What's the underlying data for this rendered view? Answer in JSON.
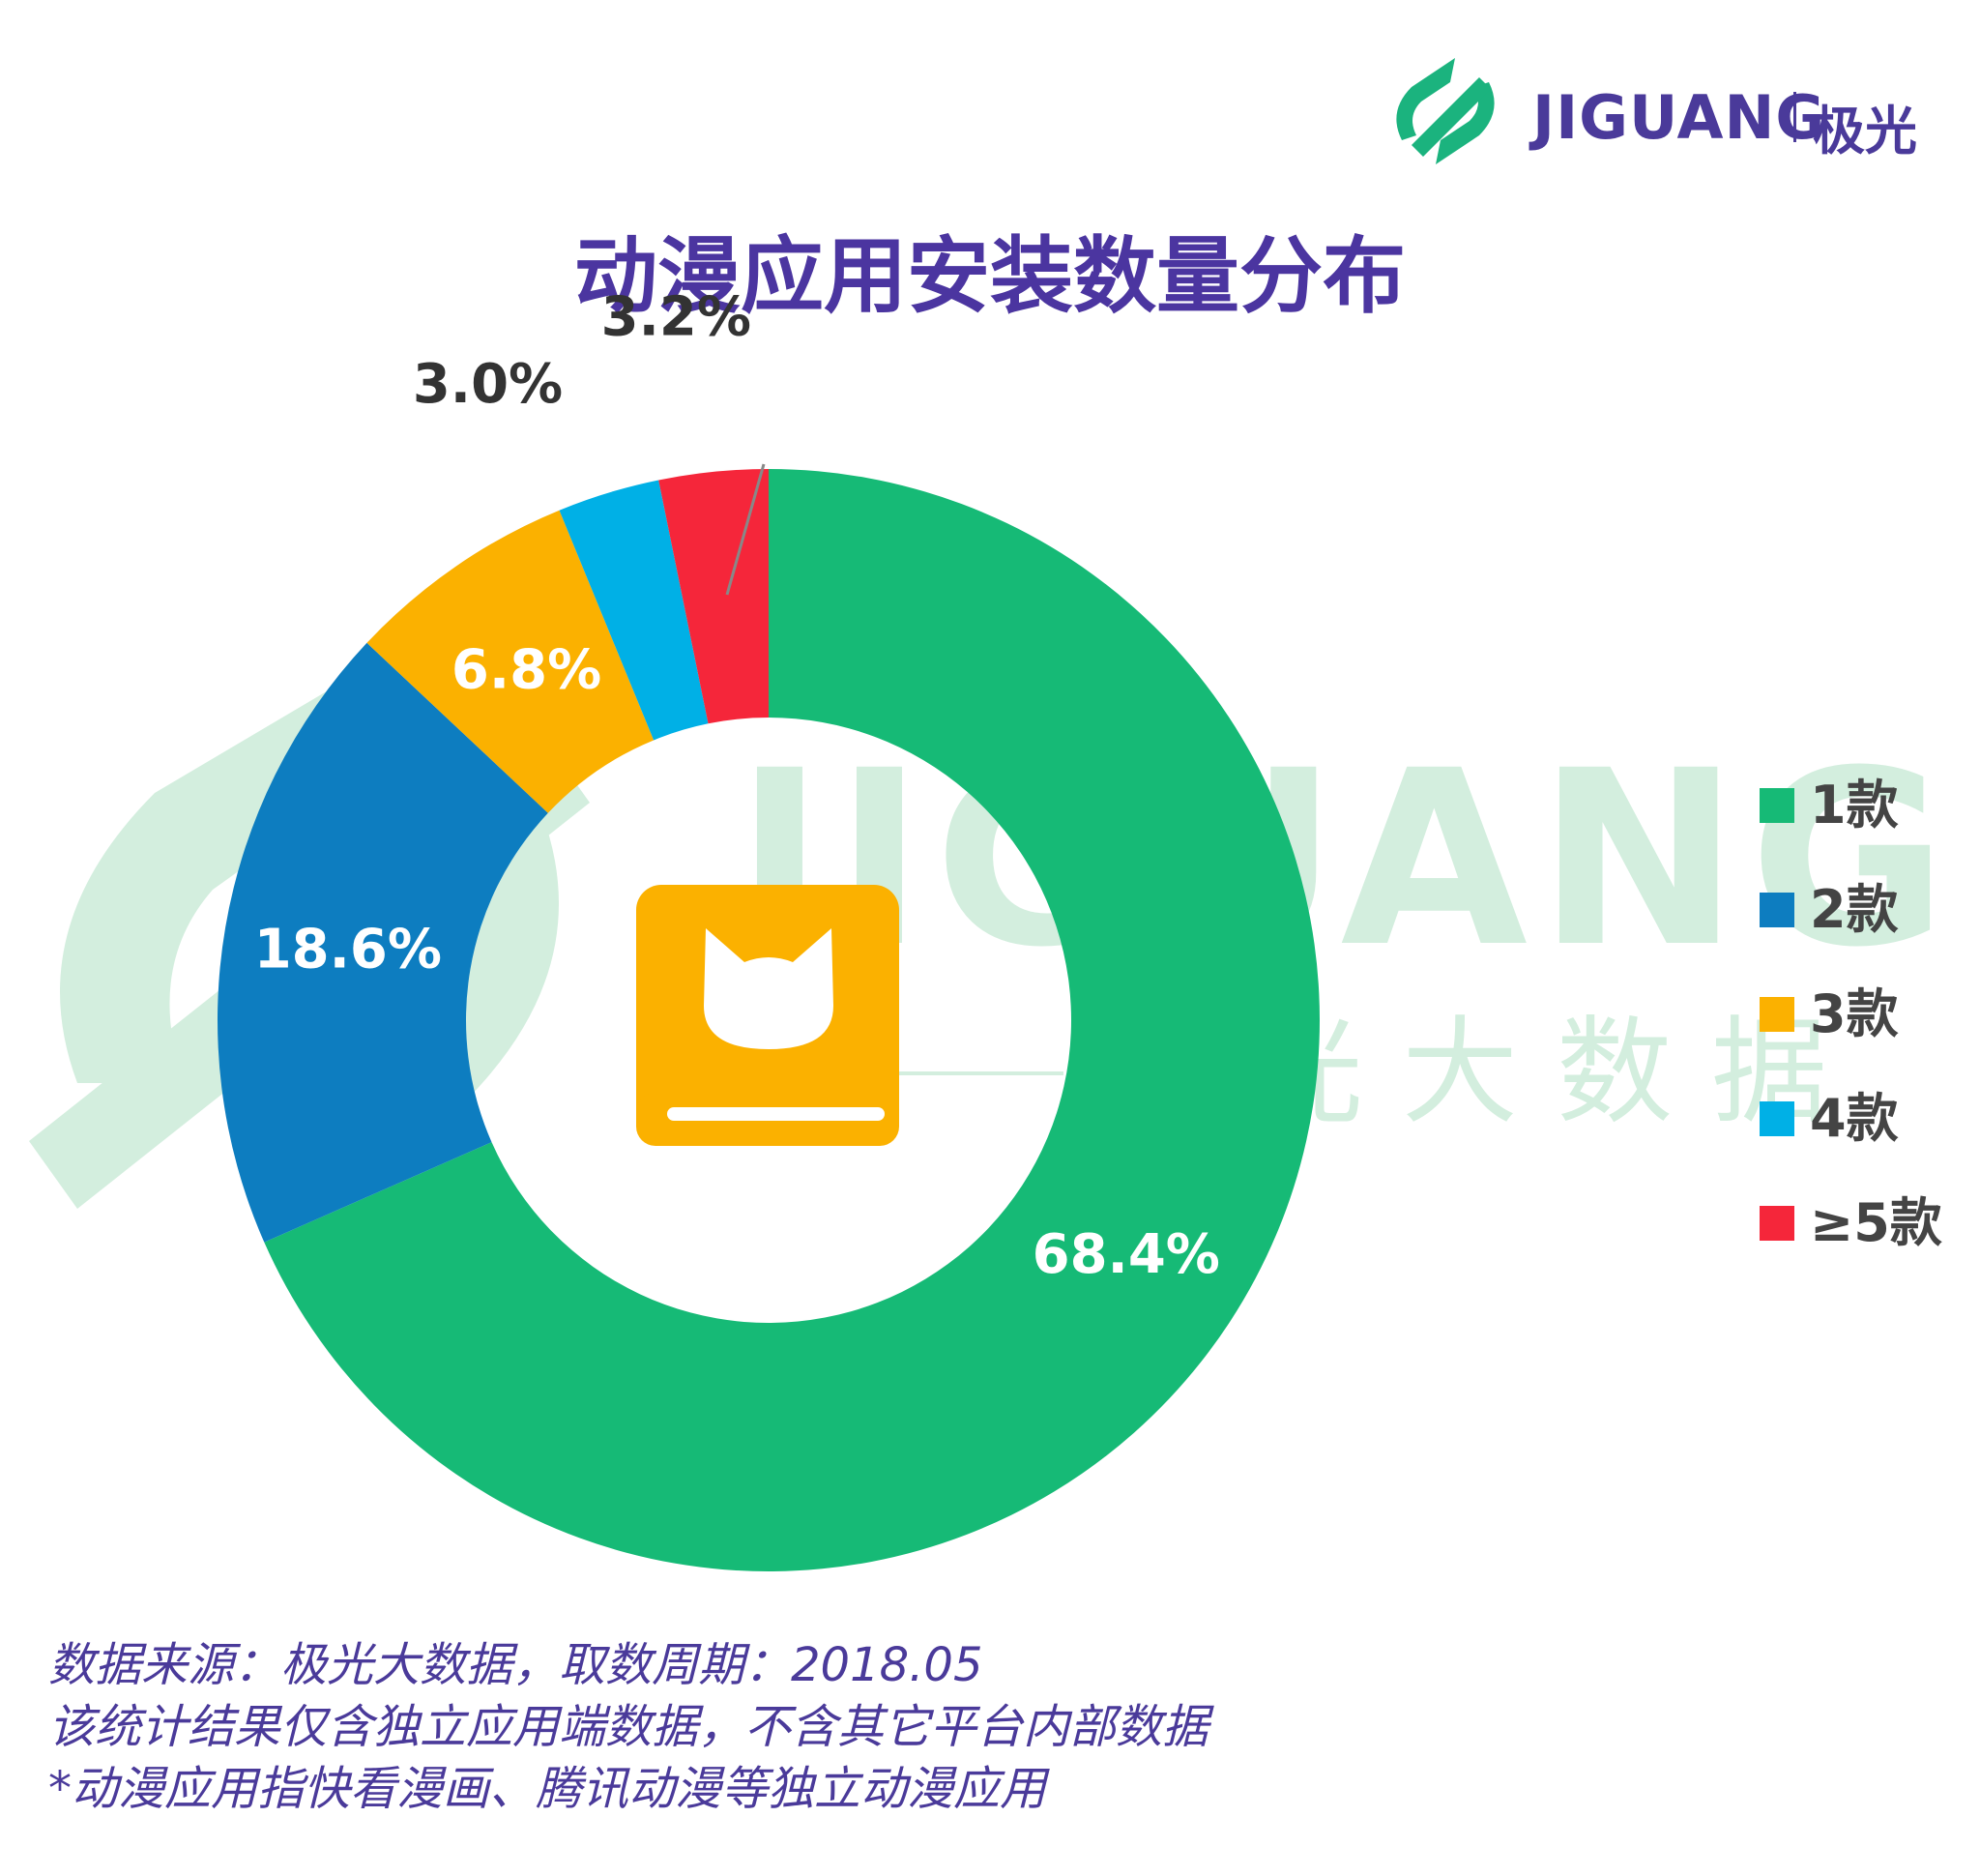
{
  "logo": {
    "brand": "JIGUANG",
    "brand_cn": "极光",
    "colors": {
      "mark": "#1bb37e",
      "text": "#4a3a9a"
    }
  },
  "watermark": {
    "brand": "JIGUANG",
    "subtitle": "极光大数据",
    "color": "#d3eede"
  },
  "center_icon": {
    "name": "comic-book-cat-icon",
    "color": "#fbb100"
  },
  "chart_data": {
    "type": "pie",
    "variant": "donut",
    "title": "动漫应用安装数量分布",
    "slices": [
      {
        "label": "1款",
        "value": 68.4,
        "value_label": "68.4%",
        "color": "#16ba76"
      },
      {
        "label": "2款",
        "value": 18.6,
        "value_label": "18.6%",
        "color": "#0d7dc0"
      },
      {
        "label": "3款",
        "value": 6.8,
        "value_label": "6.8%",
        "color": "#fbb100"
      },
      {
        "label": "4款",
        "value": 3.0,
        "value_label": "3.0%",
        "color": "#00b0e6"
      },
      {
        "label": "≥5款",
        "value": 3.2,
        "value_label": "3.2%",
        "color": "#f5263a"
      }
    ],
    "legend_position": "right",
    "start": "top",
    "direction": "clockwise"
  },
  "footnotes": [
    "数据来源：极光大数据，取数周期：2018.05",
    "该统计结果仅含独立应用端数据，不含其它平台内部数据",
    " *动漫应用指快看漫画、腾讯动漫等独立动漫应用"
  ]
}
